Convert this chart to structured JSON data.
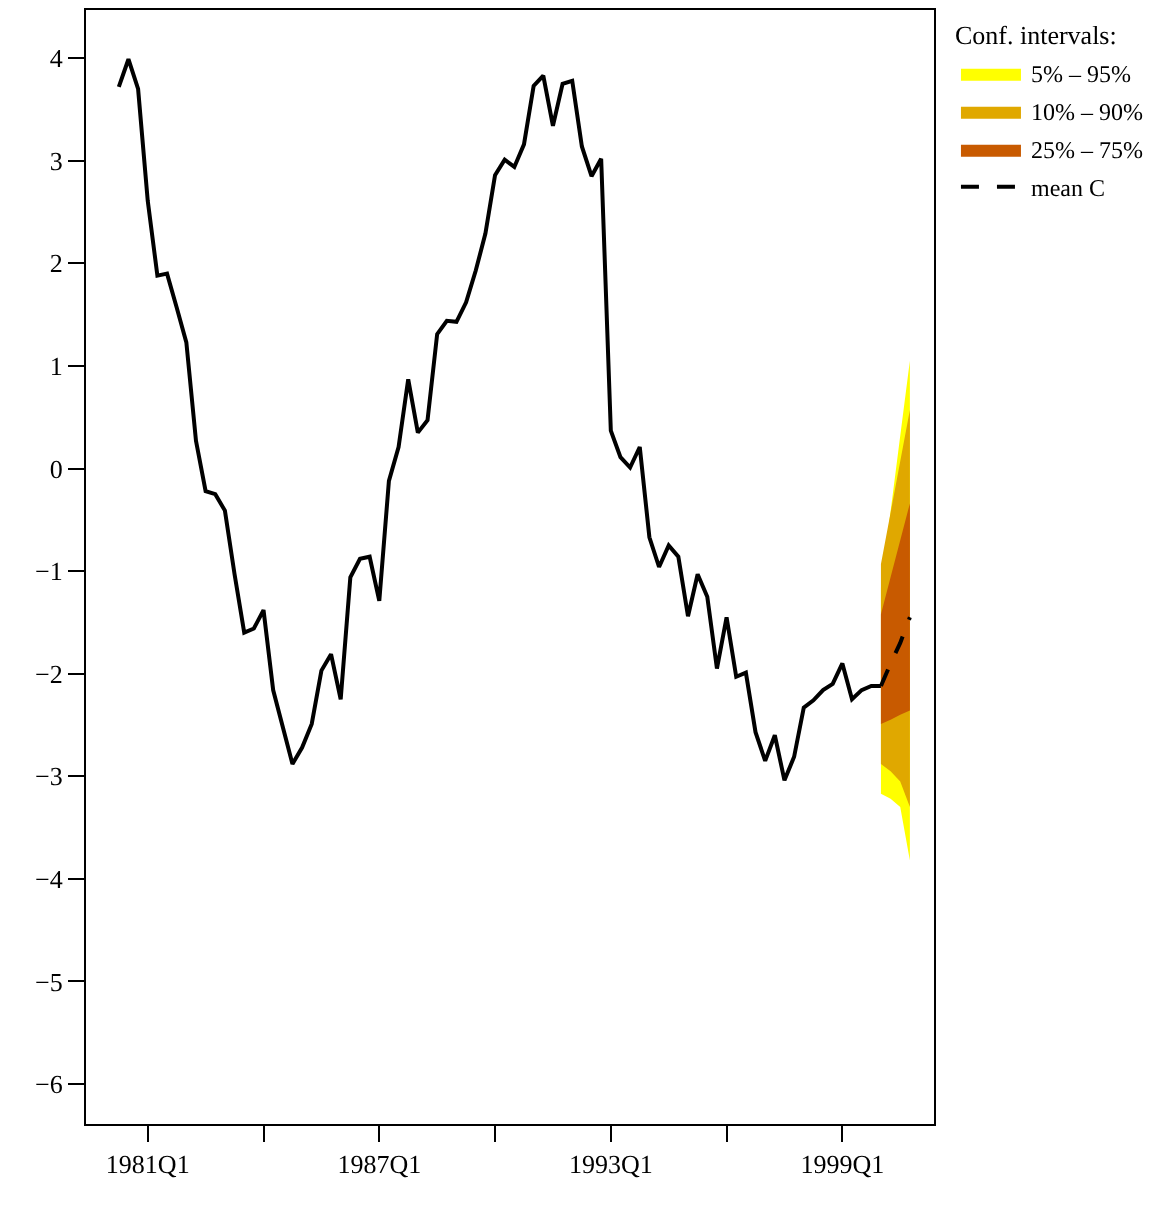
{
  "chart_data": {
    "type": "line",
    "legend_title": "Conf. intervals:",
    "categories": [
      null,
      null,
      null,
      "1981Q1",
      null,
      null,
      null,
      null,
      null,
      null,
      null,
      null,
      null,
      null,
      null,
      null,
      null,
      null,
      null,
      null,
      null,
      null,
      null,
      null,
      null,
      null,
      null,
      "1987Q1",
      null,
      null,
      null,
      null,
      null,
      null,
      null,
      null,
      null,
      null,
      null,
      null,
      null,
      null,
      null,
      null,
      null,
      null,
      null,
      null,
      null,
      null,
      null,
      "1993Q1",
      null,
      null,
      null,
      null,
      null,
      null,
      null,
      null,
      null,
      null,
      null,
      null,
      null,
      null,
      null,
      null,
      null,
      null,
      null,
      null,
      null,
      null,
      null,
      "1999Q1",
      null,
      null,
      null,
      null,
      null,
      null,
      null
    ],
    "ylim": [
      -6.39,
      4.47
    ],
    "yticks": [
      {
        "value": -6,
        "label": "−6"
      },
      {
        "value": -5,
        "label": "−5"
      },
      {
        "value": -4,
        "label": "−4"
      },
      {
        "value": -3,
        "label": "−3"
      },
      {
        "value": -2,
        "label": "−2"
      },
      {
        "value": -1,
        "label": "−1"
      },
      0,
      1,
      2,
      3,
      4
    ],
    "legend": "top right",
    "marker": "none",
    "series": [
      {
        "type": "area",
        "name": "5% – 95%",
        "color": "#ffff00",
        "values": [
          null,
          null,
          null,
          null,
          null,
          null,
          null,
          null,
          null,
          null,
          null,
          null,
          null,
          null,
          null,
          null,
          null,
          null,
          null,
          null,
          null,
          null,
          null,
          null,
          null,
          null,
          null,
          null,
          null,
          null,
          null,
          null,
          null,
          null,
          null,
          null,
          null,
          null,
          null,
          null,
          null,
          null,
          null,
          null,
          null,
          null,
          null,
          null,
          null,
          null,
          null,
          null,
          null,
          null,
          null,
          null,
          null,
          null,
          null,
          null,
          null,
          null,
          null,
          null,
          null,
          null,
          null,
          null,
          null,
          null,
          null,
          null,
          null,
          null,
          null,
          null,
          null,
          null,
          null,
          null,
          null,
          null,
          null
        ],
        "upper": [
          null,
          null,
          null,
          null,
          null,
          null,
          null,
          null,
          null,
          null,
          null,
          null,
          null,
          null,
          null,
          null,
          null,
          null,
          null,
          null,
          null,
          null,
          null,
          null,
          null,
          null,
          null,
          null,
          null,
          null,
          null,
          null,
          null,
          null,
          null,
          null,
          null,
          null,
          null,
          null,
          null,
          null,
          null,
          null,
          null,
          null,
          null,
          null,
          null,
          null,
          null,
          null,
          null,
          null,
          null,
          null,
          null,
          null,
          null,
          null,
          null,
          null,
          null,
          null,
          null,
          null,
          null,
          null,
          null,
          null,
          null,
          null,
          null,
          null,
          null,
          null,
          null,
          null,
          null,
          -1.16,
          -0.42,
          0.32,
          1.05
        ],
        "lower": [
          null,
          null,
          null,
          null,
          null,
          null,
          null,
          null,
          null,
          null,
          null,
          null,
          null,
          null,
          null,
          null,
          null,
          null,
          null,
          null,
          null,
          null,
          null,
          null,
          null,
          null,
          null,
          null,
          null,
          null,
          null,
          null,
          null,
          null,
          null,
          null,
          null,
          null,
          null,
          null,
          null,
          null,
          null,
          null,
          null,
          null,
          null,
          null,
          null,
          null,
          null,
          null,
          null,
          null,
          null,
          null,
          null,
          null,
          null,
          null,
          null,
          null,
          null,
          null,
          null,
          null,
          null,
          null,
          null,
          null,
          null,
          null,
          null,
          null,
          null,
          null,
          null,
          null,
          null,
          -3.17,
          -3.22,
          -3.3,
          -3.82
        ]
      },
      {
        "type": "area",
        "name": "10% – 90%",
        "color": "#e0a800",
        "values": [
          null,
          null,
          null,
          null,
          null,
          null,
          null,
          null,
          null,
          null,
          null,
          null,
          null,
          null,
          null,
          null,
          null,
          null,
          null,
          null,
          null,
          null,
          null,
          null,
          null,
          null,
          null,
          null,
          null,
          null,
          null,
          null,
          null,
          null,
          null,
          null,
          null,
          null,
          null,
          null,
          null,
          null,
          null,
          null,
          null,
          null,
          null,
          null,
          null,
          null,
          null,
          null,
          null,
          null,
          null,
          null,
          null,
          null,
          null,
          null,
          null,
          null,
          null,
          null,
          null,
          null,
          null,
          null,
          null,
          null,
          null,
          null,
          null,
          null,
          null,
          null,
          null,
          null,
          null,
          null,
          null,
          null,
          null
        ],
        "upper": [
          null,
          null,
          null,
          null,
          null,
          null,
          null,
          null,
          null,
          null,
          null,
          null,
          null,
          null,
          null,
          null,
          null,
          null,
          null,
          null,
          null,
          null,
          null,
          null,
          null,
          null,
          null,
          null,
          null,
          null,
          null,
          null,
          null,
          null,
          null,
          null,
          null,
          null,
          null,
          null,
          null,
          null,
          null,
          null,
          null,
          null,
          null,
          null,
          null,
          null,
          null,
          null,
          null,
          null,
          null,
          null,
          null,
          null,
          null,
          null,
          null,
          null,
          null,
          null,
          null,
          null,
          null,
          null,
          null,
          null,
          null,
          null,
          null,
          null,
          null,
          null,
          null,
          null,
          null,
          -0.93,
          -0.43,
          0.07,
          0.57
        ],
        "lower": [
          null,
          null,
          null,
          null,
          null,
          null,
          null,
          null,
          null,
          null,
          null,
          null,
          null,
          null,
          null,
          null,
          null,
          null,
          null,
          null,
          null,
          null,
          null,
          null,
          null,
          null,
          null,
          null,
          null,
          null,
          null,
          null,
          null,
          null,
          null,
          null,
          null,
          null,
          null,
          null,
          null,
          null,
          null,
          null,
          null,
          null,
          null,
          null,
          null,
          null,
          null,
          null,
          null,
          null,
          null,
          null,
          null,
          null,
          null,
          null,
          null,
          null,
          null,
          null,
          null,
          null,
          null,
          null,
          null,
          null,
          null,
          null,
          null,
          null,
          null,
          null,
          null,
          null,
          null,
          -2.88,
          -2.95,
          -3.05,
          -3.3
        ]
      },
      {
        "type": "area",
        "name": "25% – 75%",
        "color": "#c85a00",
        "values": [
          null,
          null,
          null,
          null,
          null,
          null,
          null,
          null,
          null,
          null,
          null,
          null,
          null,
          null,
          null,
          null,
          null,
          null,
          null,
          null,
          null,
          null,
          null,
          null,
          null,
          null,
          null,
          null,
          null,
          null,
          null,
          null,
          null,
          null,
          null,
          null,
          null,
          null,
          null,
          null,
          null,
          null,
          null,
          null,
          null,
          null,
          null,
          null,
          null,
          null,
          null,
          null,
          null,
          null,
          null,
          null,
          null,
          null,
          null,
          null,
          null,
          null,
          null,
          null,
          null,
          null,
          null,
          null,
          null,
          null,
          null,
          null,
          null,
          null,
          null,
          null,
          null,
          null,
          null,
          null,
          null,
          null,
          null
        ],
        "upper": [
          null,
          null,
          null,
          null,
          null,
          null,
          null,
          null,
          null,
          null,
          null,
          null,
          null,
          null,
          null,
          null,
          null,
          null,
          null,
          null,
          null,
          null,
          null,
          null,
          null,
          null,
          null,
          null,
          null,
          null,
          null,
          null,
          null,
          null,
          null,
          null,
          null,
          null,
          null,
          null,
          null,
          null,
          null,
          null,
          null,
          null,
          null,
          null,
          null,
          null,
          null,
          null,
          null,
          null,
          null,
          null,
          null,
          null,
          null,
          null,
          null,
          null,
          null,
          null,
          null,
          null,
          null,
          null,
          null,
          null,
          null,
          null,
          null,
          null,
          null,
          null,
          null,
          null,
          null,
          -1.42,
          -1.06,
          -0.7,
          -0.34
        ],
        "lower": [
          null,
          null,
          null,
          null,
          null,
          null,
          null,
          null,
          null,
          null,
          null,
          null,
          null,
          null,
          null,
          null,
          null,
          null,
          null,
          null,
          null,
          null,
          null,
          null,
          null,
          null,
          null,
          null,
          null,
          null,
          null,
          null,
          null,
          null,
          null,
          null,
          null,
          null,
          null,
          null,
          null,
          null,
          null,
          null,
          null,
          null,
          null,
          null,
          null,
          null,
          null,
          null,
          null,
          null,
          null,
          null,
          null,
          null,
          null,
          null,
          null,
          null,
          null,
          null,
          null,
          null,
          null,
          null,
          null,
          null,
          null,
          null,
          null,
          null,
          null,
          null,
          null,
          null,
          null,
          -2.49,
          -2.45,
          -2.4,
          -2.36
        ]
      },
      {
        "color": "#000000",
        "line_style": "solid",
        "values": [
          3.72,
          3.99,
          3.7,
          2.61,
          1.88,
          1.9,
          1.57,
          1.23,
          0.27,
          -0.22,
          -0.25,
          -0.41,
          -1.03,
          -1.6,
          -1.56,
          -1.38,
          -2.16,
          -2.52,
          -2.88,
          -2.72,
          -2.49,
          -1.97,
          -1.81,
          -2.25,
          -1.06,
          -0.88,
          -0.86,
          -1.29,
          -0.12,
          0.21,
          0.87,
          0.35,
          0.47,
          1.31,
          1.44,
          1.43,
          1.62,
          1.93,
          2.29,
          2.86,
          3.01,
          2.94,
          3.16,
          3.73,
          3.83,
          3.34,
          3.75,
          3.78,
          3.14,
          2.85,
          3.02,
          0.37,
          0.11,
          0.01,
          0.21,
          -0.67,
          -0.96,
          -0.75,
          -0.86,
          -1.44,
          -1.03,
          -1.25,
          -1.95,
          -1.45,
          -2.03,
          -1.99,
          -2.57,
          -2.85,
          -2.6,
          -3.04,
          -2.81,
          -2.33,
          -2.26,
          -2.16,
          -2.1,
          -1.9,
          -2.25,
          -2.16,
          -2.12,
          -2.12,
          null,
          null,
          null
        ]
      },
      {
        "name": "mean C",
        "color": "#000000",
        "line_style": "dashed",
        "values": [
          null,
          null,
          null,
          null,
          null,
          null,
          null,
          null,
          null,
          null,
          null,
          null,
          null,
          null,
          null,
          null,
          null,
          null,
          null,
          null,
          null,
          null,
          null,
          null,
          null,
          null,
          null,
          null,
          null,
          null,
          null,
          null,
          null,
          null,
          null,
          null,
          null,
          null,
          null,
          null,
          null,
          null,
          null,
          null,
          null,
          null,
          null,
          null,
          null,
          null,
          null,
          null,
          null,
          null,
          null,
          null,
          null,
          null,
          null,
          null,
          null,
          null,
          null,
          null,
          null,
          null,
          null,
          null,
          null,
          null,
          null,
          null,
          null,
          null,
          null,
          null,
          null,
          null,
          null,
          -2.12,
          -1.9,
          -1.7,
          -1.45
        ]
      }
    ]
  }
}
